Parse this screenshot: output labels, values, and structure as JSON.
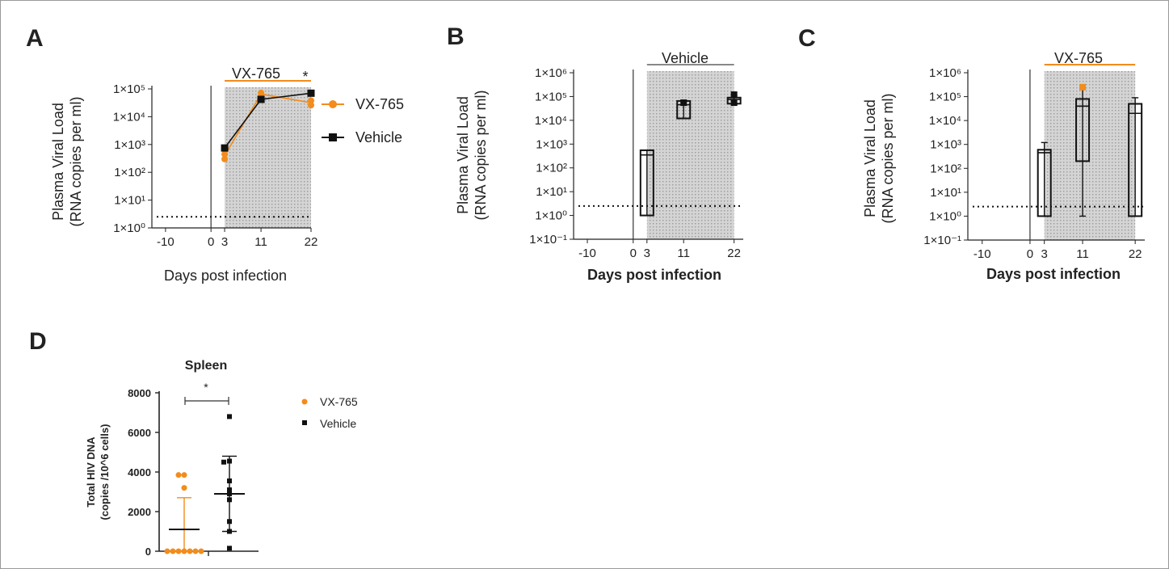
{
  "colors": {
    "vx": "#f28c1c",
    "vehicle": "#111111",
    "shade": "#c8c8c8",
    "frame": "#999999"
  },
  "panels": {
    "a": "A",
    "b": "B",
    "c": "C",
    "d": "D"
  },
  "chart_data": [
    {
      "panel": "A",
      "type": "line",
      "xlabel": "Days post infection",
      "ylabel": [
        "Plasma Viral Load",
        "(RNA copies per ml)"
      ],
      "ylog": true,
      "ylim_exp": [
        0,
        5
      ],
      "yticks": [
        "1×10⁰",
        "1×10¹",
        "1×10²",
        "1×10³",
        "1×10⁴",
        "1×10⁵"
      ],
      "xlim": [
        -13,
        22
      ],
      "xticks": [
        "-10",
        "0",
        "3",
        "11",
        "22"
      ],
      "xtick_values": [
        -10,
        0,
        3,
        11,
        22
      ],
      "treatment": {
        "label": "VX-765",
        "x_range": [
          3,
          22
        ],
        "color": "#f28c1c"
      },
      "detection_limit": 2.5,
      "significance": {
        "label": "*",
        "x": 22
      },
      "legend": {
        "position": "right",
        "entries": [
          "VX-765",
          "Vehicle"
        ]
      },
      "series": [
        {
          "name": "VX-765",
          "x": [
            3,
            3,
            11,
            11,
            22,
            22
          ],
          "y": [
            300,
            450,
            55000,
            72000,
            26000,
            38000
          ],
          "mean_x": [
            3,
            11,
            22
          ],
          "mean_y": [
            400,
            65000,
            32000
          ]
        },
        {
          "name": "Vehicle",
          "x": [
            3,
            11,
            22
          ],
          "y": [
            750,
            42000,
            70000
          ],
          "mean_x": [
            3,
            11,
            22
          ],
          "mean_y": [
            750,
            42000,
            70000
          ]
        }
      ]
    },
    {
      "panel": "B",
      "type": "box",
      "xlabel": "Days post infection",
      "ylabel": [
        "Plasma Viral Load",
        "(RNA copies per ml)"
      ],
      "ylog": true,
      "ylim_exp": [
        -1,
        6
      ],
      "yticks": [
        "1×10⁻¹",
        "1×10⁰",
        "1×10¹",
        "1×10²",
        "1×10³",
        "1×10⁴",
        "1×10⁵",
        "1×10⁶"
      ],
      "xlim": [
        -13,
        24
      ],
      "xticks": [
        "-10",
        "0",
        "3",
        "11",
        "22"
      ],
      "xtick_values": [
        -10,
        0,
        3,
        11,
        22
      ],
      "treatment": {
        "label": "Vehicle",
        "x_range": [
          3,
          22
        ],
        "color": "#888888"
      },
      "detection_limit": 2.5,
      "boxes": [
        {
          "x": 3,
          "min": 1,
          "q1": 1,
          "median": 350,
          "q3": 550,
          "max": 550
        },
        {
          "x": 11,
          "min": 12000,
          "q1": 12000,
          "median": 45000,
          "q3": 65000,
          "max": 70000
        },
        {
          "x": 22,
          "min": 45000,
          "q1": 50000,
          "median": 75000,
          "q3": 90000,
          "max": 110000
        }
      ],
      "points": [
        {
          "x": 11,
          "y": 55000
        },
        {
          "x": 22,
          "y": 120000
        },
        {
          "x": 22,
          "y": 55000
        }
      ]
    },
    {
      "panel": "C",
      "type": "box",
      "xlabel": "Days post infection",
      "ylabel": [
        "Plasma Viral Load",
        "(RNA copies per ml)"
      ],
      "ylog": true,
      "ylim_exp": [
        -1,
        6
      ],
      "yticks": [
        "1×10⁻¹",
        "1×10⁰",
        "1×10¹",
        "1×10²",
        "1×10³",
        "1×10⁴",
        "1×10⁵",
        "1×10⁶"
      ],
      "xlim": [
        -13,
        24
      ],
      "xticks": [
        "-10",
        "0",
        "3",
        "11",
        "22"
      ],
      "xtick_values": [
        -10,
        0,
        3,
        11,
        22
      ],
      "treatment": {
        "label": "VX-765",
        "x_range": [
          3,
          22
        ],
        "color": "#f28c1c"
      },
      "detection_limit": 2.5,
      "boxes": [
        {
          "x": 3,
          "min": 1,
          "q1": 1,
          "median": 450,
          "q3": 600,
          "max": 1200
        },
        {
          "x": 11,
          "min": 1,
          "q1": 200,
          "median": 40000,
          "q3": 80000,
          "max": 200000
        },
        {
          "x": 22,
          "min": 1,
          "q1": 1,
          "median": 20000,
          "q3": 50000,
          "max": 90000
        }
      ],
      "points": [
        {
          "x": 11,
          "y": 250000,
          "color": "#f28c1c"
        }
      ]
    },
    {
      "panel": "D",
      "type": "scatter",
      "title": "Spleen",
      "ylabel": [
        "Total HIV DNA",
        "(copies /10^6 cells)"
      ],
      "ylim": [
        0,
        8000
      ],
      "yticks": [
        "0",
        "2000",
        "4000",
        "6000",
        "8000"
      ],
      "ytick_values": [
        0,
        2000,
        4000,
        6000,
        8000
      ],
      "significance": {
        "label": "*"
      },
      "legend": {
        "position": "right",
        "entries": [
          "VX-765",
          "Vehicle"
        ]
      },
      "series": [
        {
          "name": "VX-765",
          "values": [
            3850,
            3850,
            3200,
            0,
            0,
            0,
            0,
            0,
            0,
            0
          ],
          "mean": 1100,
          "sd_upper": 2700,
          "sd_lower": 0
        },
        {
          "name": "Vehicle",
          "values": [
            6800,
            4550,
            4500,
            3550,
            3100,
            2900,
            2600,
            1500,
            1000,
            150
          ],
          "mean": 2900,
          "sd_upper": 4800,
          "sd_lower": 1000
        }
      ]
    }
  ]
}
